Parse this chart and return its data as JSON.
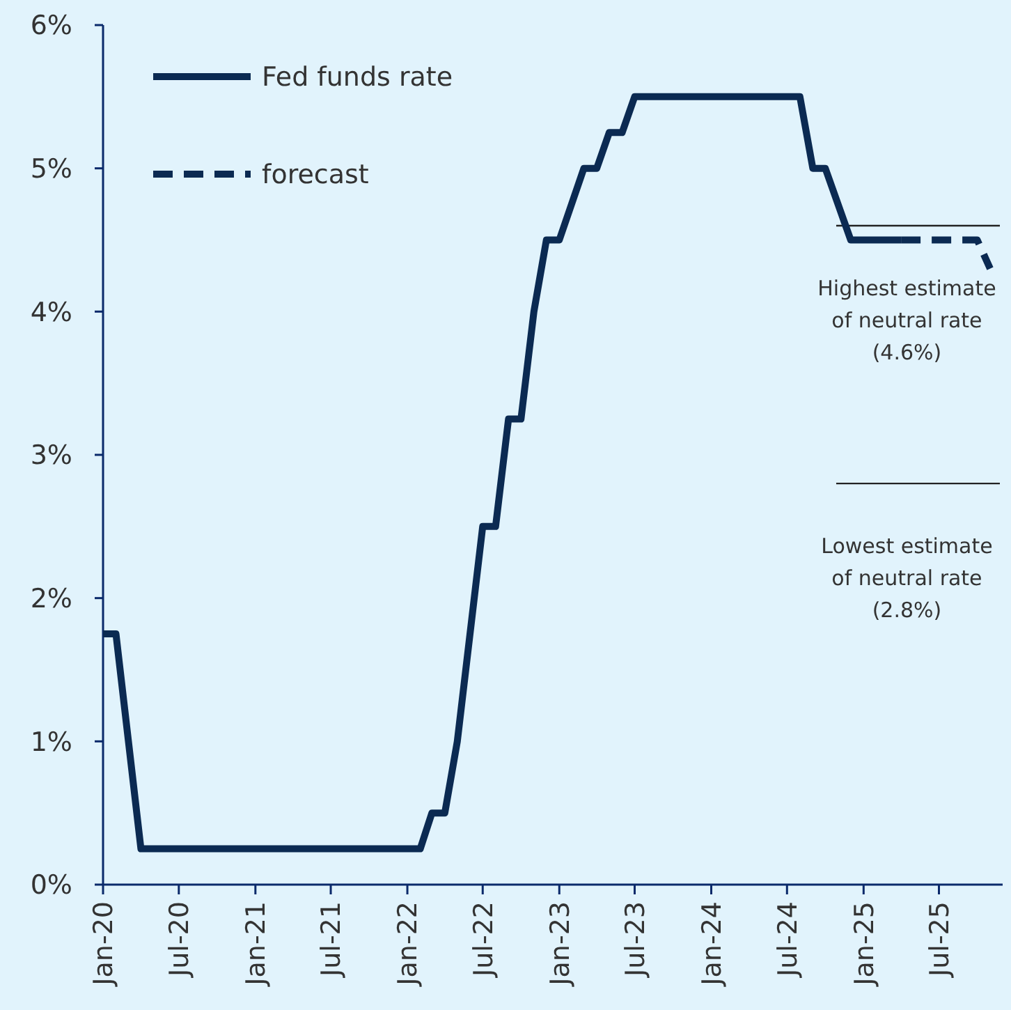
{
  "chart_data": {
    "type": "line",
    "xlim": [
      "2020-01",
      "2025-12"
    ],
    "ylim": [
      0,
      6
    ],
    "yticks": [
      {
        "value": 0,
        "label": "0%"
      },
      {
        "value": 1,
        "label": "1%"
      },
      {
        "value": 2,
        "label": "2%"
      },
      {
        "value": 3,
        "label": "3%"
      },
      {
        "value": 4,
        "label": "4%"
      },
      {
        "value": 5,
        "label": "5%"
      },
      {
        "value": 6,
        "label": "6%"
      }
    ],
    "xticks": [
      {
        "value": "2020-01",
        "label": "Jan-20"
      },
      {
        "value": "2020-07",
        "label": "Jul-20"
      },
      {
        "value": "2021-01",
        "label": "Jan-21"
      },
      {
        "value": "2021-07",
        "label": "Jul-21"
      },
      {
        "value": "2022-01",
        "label": "Jan-22"
      },
      {
        "value": "2022-07",
        "label": "Jul-22"
      },
      {
        "value": "2023-01",
        "label": "Jan-23"
      },
      {
        "value": "2023-07",
        "label": "Jul-23"
      },
      {
        "value": "2024-01",
        "label": "Jan-24"
      },
      {
        "value": "2024-07",
        "label": "Jul-24"
      },
      {
        "value": "2025-01",
        "label": "Jan-25"
      },
      {
        "value": "2025-07",
        "label": "Jul-25"
      }
    ],
    "series": [
      {
        "name": "Fed funds rate",
        "color": "#0b2a52",
        "line_style": "solid",
        "x": [
          "2020-01",
          "2020-02",
          "2020-04",
          "2022-02",
          "2022-03",
          "2022-04",
          "2022-05",
          "2022-07",
          "2022-08",
          "2022-09",
          "2022-10",
          "2022-11",
          "2022-12",
          "2023-01",
          "2023-03",
          "2023-04",
          "2023-05",
          "2023-06",
          "2023-07",
          "2024-08",
          "2024-09",
          "2024-10",
          "2024-12",
          "2025-04"
        ],
        "values": [
          1.75,
          1.75,
          0.25,
          0.25,
          0.5,
          0.5,
          1.0,
          2.5,
          2.5,
          3.25,
          3.25,
          4.0,
          4.5,
          4.5,
          5.0,
          5.0,
          5.25,
          5.25,
          5.5,
          5.5,
          5.0,
          5.0,
          4.5,
          4.5
        ]
      },
      {
        "name": "forecast",
        "color": "#0b2a52",
        "line_style": "dashed",
        "x": [
          "2025-04",
          "2025-10",
          "2025-11"
        ],
        "values": [
          4.5,
          4.5,
          4.3
        ]
      }
    ],
    "ref_lines": [
      {
        "axis": "y",
        "value": 4.6,
        "label": "Highest estimate\nof neutral rate\n(4.6%)",
        "color": "#222222"
      },
      {
        "axis": "y",
        "value": 2.8,
        "label": "Lowest estimate\nof neutral rate\n(2.8%)",
        "color": "#222222"
      }
    ],
    "legend": "top left",
    "grid": false
  }
}
